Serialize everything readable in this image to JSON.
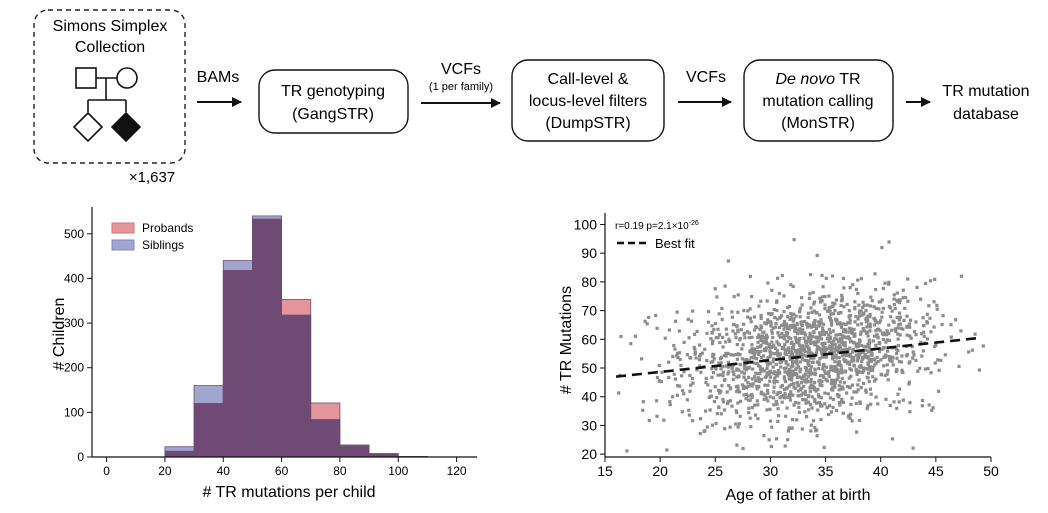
{
  "pipeline": {
    "source_line1": "Simons Simplex",
    "source_line2": "Collection",
    "multiplier": "×1,637",
    "arrow1_label": "BAMs",
    "step1_line1": "TR genotyping",
    "step1_line2": "(GangSTR)",
    "arrow2_label": "VCFs",
    "arrow2_sublabel": "(1 per family)",
    "step2_line1": "Call-level &",
    "step2_line2": "locus-level filters",
    "step2_line3": "(DumpSTR)",
    "arrow3_label": "VCFs",
    "step3_line1_italic": "De novo",
    "step3_line1_rest": " TR",
    "step3_line2": "mutation calling",
    "step3_line3": "(MonSTR)",
    "output_line1": "TR mutation",
    "output_line2": "database"
  },
  "colors": {
    "probands": "#d9737b",
    "siblings": "#8088c0",
    "overlap": "#6f4a74",
    "scatter": "#8c8c8c"
  },
  "chart_data": [
    {
      "type": "bar",
      "subtype": "histogram",
      "xlabel": "# TR mutations per child",
      "ylabel": "# Children",
      "xlim": [
        -5,
        127
      ],
      "ylim": [
        0,
        560
      ],
      "xticks": [
        0,
        20,
        40,
        60,
        80,
        100,
        120
      ],
      "yticks": [
        0,
        100,
        200,
        300,
        400,
        500
      ],
      "bin_edges": [
        20,
        30,
        40,
        50,
        60,
        70,
        80,
        90,
        100,
        110
      ],
      "legend_position": "top-left",
      "series": [
        {
          "name": "Probands",
          "values": [
            13,
            120,
            418,
            533,
            353,
            121,
            25,
            6,
            1
          ]
        },
        {
          "name": "Siblings",
          "values": [
            23,
            160,
            440,
            540,
            318,
            84,
            27,
            8,
            1
          ]
        }
      ]
    },
    {
      "type": "scatter",
      "xlabel": "Age of father at birth",
      "ylabel": "# TR Mutations",
      "xlim": [
        15,
        50
      ],
      "ylim": [
        19,
        104
      ],
      "xticks": [
        15,
        20,
        25,
        30,
        35,
        40,
        45,
        50
      ],
      "yticks": [
        20,
        30,
        40,
        50,
        60,
        70,
        80,
        90,
        100
      ],
      "annotation_prefix": "r=0.19 p=2.1×10",
      "annotation_exponent": "-26",
      "legend_label": "Best fit",
      "legend_position": "top-left",
      "fit_line": {
        "x": [
          16,
          49
        ],
        "y": [
          47.0,
          60.5
        ]
      },
      "n_points": 1637,
      "points_note": "Dense cloud centered near age 33, 53 mutations; values are randomly generated to approximate the visual distribution."
    }
  ]
}
